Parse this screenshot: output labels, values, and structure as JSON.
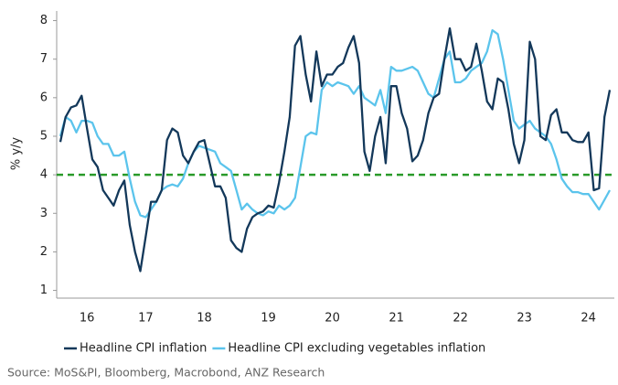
{
  "chart_data": {
    "type": "line",
    "ylabel": "% y/y",
    "source": "Source: MoS&PI, Bloomberg, Macrobond, ANZ Research",
    "categories": [
      null,
      null,
      null,
      null,
      null,
      "16",
      null,
      null,
      null,
      null,
      null,
      null,
      null,
      null,
      null,
      null,
      "17",
      null,
      null,
      null,
      null,
      null,
      null,
      null,
      null,
      null,
      null,
      "18",
      null,
      null,
      null,
      null,
      null,
      null,
      null,
      null,
      null,
      null,
      null,
      "19",
      null,
      null,
      null,
      null,
      null,
      null,
      null,
      null,
      null,
      null,
      null,
      "20",
      null,
      null,
      null,
      null,
      null,
      null,
      null,
      null,
      null,
      null,
      null,
      "21",
      null,
      null,
      null,
      null,
      null,
      null,
      null,
      null,
      null,
      null,
      null,
      "22",
      null,
      null,
      null,
      null,
      null,
      null,
      null,
      null,
      null,
      null,
      null,
      "23",
      null,
      null,
      null,
      null,
      null,
      null,
      null,
      null,
      null,
      null,
      null,
      "24",
      null,
      null,
      null,
      null
    ],
    "series": [
      {
        "name": "Headline CPI inflation",
        "color": "#13385a",
        "values": [
          4.85,
          5.5,
          5.75,
          5.8,
          6.05,
          5.2,
          4.4,
          4.2,
          3.6,
          3.4,
          3.2,
          3.6,
          3.85,
          2.7,
          2.0,
          1.5,
          2.4,
          3.3,
          3.3,
          3.6,
          4.9,
          5.2,
          5.1,
          4.5,
          4.3,
          4.6,
          4.85,
          4.9,
          4.3,
          3.7,
          3.7,
          3.4,
          2.3,
          2.1,
          2.0,
          2.6,
          2.9,
          3.0,
          3.05,
          3.2,
          3.15,
          3.8,
          4.6,
          5.5,
          7.35,
          7.6,
          6.6,
          5.9,
          7.2,
          6.3,
          6.6,
          6.6,
          6.8,
          6.9,
          7.3,
          7.6,
          6.9,
          4.6,
          4.1,
          5.0,
          5.5,
          4.3,
          6.3,
          6.3,
          5.6,
          5.2,
          4.35,
          4.5,
          4.9,
          5.6,
          6.0,
          6.1,
          7.0,
          7.8,
          7.0,
          7.0,
          6.7,
          6.8,
          7.4,
          6.7,
          5.9,
          5.7,
          6.5,
          6.4,
          5.7,
          4.8,
          4.3,
          4.9,
          7.45,
          7.0,
          5.0,
          4.9,
          5.55,
          5.7,
          5.1,
          5.1,
          4.9,
          4.85,
          4.85,
          5.1,
          3.6,
          3.65,
          5.5,
          6.2
        ]
      },
      {
        "name": "Headline CPI excluding vegetables inflation",
        "color": "#5bc4ec",
        "values": [
          5.0,
          5.5,
          5.4,
          5.1,
          5.4,
          5.4,
          5.35,
          5.0,
          4.8,
          4.8,
          4.5,
          4.5,
          4.6,
          3.9,
          3.3,
          2.95,
          2.9,
          3.1,
          3.3,
          3.6,
          3.7,
          3.75,
          3.7,
          3.9,
          4.3,
          4.6,
          4.75,
          4.7,
          4.65,
          4.6,
          4.3,
          4.2,
          4.1,
          3.6,
          3.1,
          3.25,
          3.1,
          3.0,
          2.95,
          3.05,
          3.0,
          3.2,
          3.1,
          3.2,
          3.4,
          4.2,
          5.0,
          5.1,
          5.05,
          6.2,
          6.4,
          6.3,
          6.4,
          6.35,
          6.3,
          6.1,
          6.3,
          6.0,
          5.9,
          5.8,
          6.2,
          5.6,
          6.8,
          6.7,
          6.7,
          6.75,
          6.8,
          6.7,
          6.4,
          6.1,
          6.0,
          6.5,
          7.0,
          7.2,
          6.4,
          6.4,
          6.5,
          6.7,
          6.8,
          6.9,
          7.2,
          7.75,
          7.65,
          7.0,
          6.2,
          5.4,
          5.2,
          5.3,
          5.4,
          5.2,
          5.1,
          5.0,
          4.8,
          4.4,
          3.9,
          3.7,
          3.55,
          3.55,
          3.5,
          3.5,
          3.3,
          3.1,
          3.35,
          3.6
        ]
      }
    ],
    "reference_line": {
      "value": 4,
      "color": "#2a9a2a"
    },
    "ylim": [
      0.8,
      8.25
    ],
    "yticks": [
      1,
      2,
      3,
      4,
      5,
      6,
      7,
      8
    ],
    "grid": false
  }
}
